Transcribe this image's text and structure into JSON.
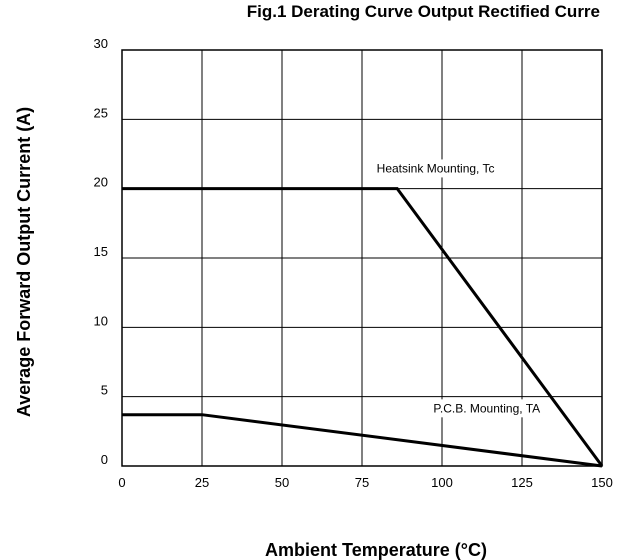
{
  "chart_data": {
    "type": "line",
    "title": "Fig.1  Derating Curve Output Rectified Curre",
    "xlabel": "Ambient Temperature (°C)",
    "ylabel": "Average Forward Output Current (A)",
    "xlim": [
      0,
      150
    ],
    "ylim": [
      0,
      30
    ],
    "xticks": [
      0,
      25,
      50,
      75,
      100,
      125,
      150
    ],
    "yticks": [
      0,
      5,
      10,
      15,
      20,
      25,
      30
    ],
    "grid": true,
    "series": [
      {
        "name": "Heatsink Mounting, Tc",
        "x": [
          0,
          86,
          150
        ],
        "y": [
          20,
          20,
          0
        ]
      },
      {
        "name": "P.C.B. Mounting, TA",
        "x": [
          0,
          25,
          150
        ],
        "y": [
          3.7,
          3.7,
          0
        ]
      }
    ],
    "annotations": [
      {
        "text": "Heatsink Mounting, Tc",
        "x": 98,
        "y": 21.4
      },
      {
        "text": "P.C.B. Mounting, TA",
        "x": 114,
        "y": 4.1
      }
    ]
  }
}
